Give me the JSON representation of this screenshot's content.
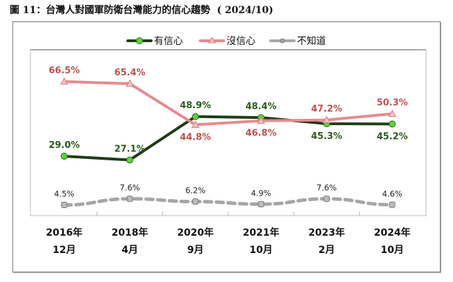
{
  "title": "圖 11：台灣人對國軍防衛台灣能力的信心趨勢  ( 2024/10)",
  "chart_data": {
    "type": "line",
    "title": "圖 11：台灣人對國軍防衛台灣能力的信心趨勢  ( 2024/10)",
    "categories": [
      [
        "2016年",
        "12月"
      ],
      [
        "2018年",
        "4月"
      ],
      [
        "2020年",
        "9月"
      ],
      [
        "2021年",
        "10月"
      ],
      [
        "2023年",
        "2月"
      ],
      [
        "2024年",
        "10月"
      ]
    ],
    "ylim": [
      0,
      83
    ],
    "grid": false,
    "legend": "top",
    "series": [
      {
        "name": "有信心",
        "values": [
          29.0,
          27.1,
          48.9,
          48.4,
          45.3,
          45.2
        ],
        "labels": [
          "29.0%",
          "27.1%",
          "48.9%",
          "48.4%",
          "45.3%",
          "45.2%"
        ],
        "color": "#1e3d14",
        "marker_color": "#5fd23a",
        "marker": "circle",
        "label_color": "#2a5a1a",
        "label_pos": [
          "above",
          "above",
          "above",
          "above",
          "below",
          "below"
        ]
      },
      {
        "name": "沒信心",
        "values": [
          66.5,
          65.4,
          44.8,
          46.8,
          47.2,
          50.3
        ],
        "labels": [
          "66.5%",
          "65.4%",
          "44.8%",
          "46.8%",
          "47.2%",
          "50.3%"
        ],
        "color": "#e68a8f",
        "marker_color": "#f4c2c2",
        "marker": "triangle",
        "label_color": "#c0504d",
        "label_pos": [
          "above",
          "above",
          "below",
          "below",
          "above",
          "above"
        ]
      },
      {
        "name": "不知道",
        "values": [
          4.5,
          7.6,
          6.2,
          4.9,
          7.6,
          4.6
        ],
        "labels": [
          "4.5%",
          "7.6%",
          "6.2%",
          "4.9%",
          "7.6%",
          "4.6%"
        ],
        "color": "#a6a6a6",
        "marker_color": "#a6a6a6",
        "marker": "circle",
        "label_color": "#222222",
        "label_pos": [
          "above",
          "above",
          "above",
          "above",
          "above",
          "above"
        ],
        "dashed": true
      }
    ]
  }
}
